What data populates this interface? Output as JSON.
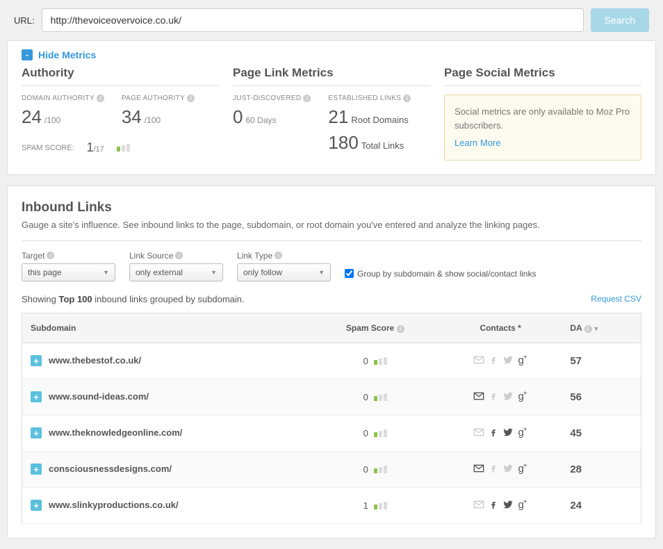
{
  "url_bar": {
    "label": "URL:",
    "value": "http://thevoiceovervoice.co.uk/",
    "search_btn": "Search"
  },
  "hide_metrics": {
    "toggle": "-",
    "label": "Hide Metrics"
  },
  "authority": {
    "title": "Authority",
    "domain_auth_label": "DOMAIN AUTHORITY",
    "domain_auth_value": "24",
    "domain_auth_max": "/100",
    "page_auth_label": "PAGE AUTHORITY",
    "page_auth_value": "34",
    "page_auth_max": "/100",
    "spam_label": "SPAM SCORE:",
    "spam_value": "1",
    "spam_max": "/17"
  },
  "page_link": {
    "title": "Page Link Metrics",
    "just_label": "JUST-DISCOVERED",
    "just_value": "0",
    "just_suffix": "60 Days",
    "est_label": "ESTABLISHED LINKS",
    "root_value": "21",
    "root_suffix": "Root Domains",
    "total_value": "180",
    "total_suffix": "Total Links"
  },
  "social": {
    "title": "Page Social Metrics",
    "msg": "Social metrics are only available to Moz Pro subscribers.",
    "link": "Learn More"
  },
  "inbound": {
    "title": "Inbound Links",
    "desc": "Gauge a site's influence. See inbound links to the page, subdomain, or root domain you've entered and analyze the linking pages."
  },
  "filters": {
    "target_label": "Target",
    "target_value": "this page",
    "source_label": "Link Source",
    "source_value": "only external",
    "type_label": "Link Type",
    "type_value": "only follow",
    "group_label": "Group by subdomain & show social/contact links"
  },
  "showing": {
    "prefix": "Showing ",
    "bold": "Top 100",
    "suffix": " inbound links grouped by subdomain.",
    "csv": "Request CSV"
  },
  "table": {
    "headers": {
      "subdomain": "Subdomain",
      "spam": "Spam Score",
      "contacts": "Contacts *",
      "da": "DA"
    },
    "rows": [
      {
        "subdomain": "www.thebestof.co.uk/",
        "spam": "0",
        "mail": false,
        "fb": false,
        "tw": false,
        "gp": true,
        "da": "57"
      },
      {
        "subdomain": "www.sound-ideas.com/",
        "spam": "0",
        "mail": true,
        "fb": false,
        "tw": false,
        "gp": true,
        "da": "56"
      },
      {
        "subdomain": "www.theknowledgeonline.com/",
        "spam": "0",
        "mail": false,
        "fb": true,
        "tw": true,
        "gp": true,
        "da": "45"
      },
      {
        "subdomain": "consciousnessdesigns.com/",
        "spam": "0",
        "mail": true,
        "fb": false,
        "tw": false,
        "gp": true,
        "da": "28"
      },
      {
        "subdomain": "www.slinkyproductions.co.uk/",
        "spam": "1",
        "mail": false,
        "fb": true,
        "tw": true,
        "gp": true,
        "da": "24"
      }
    ]
  },
  "colors": {
    "link": "#3498db",
    "search_btn": "#a8d8e8",
    "spam_green": "#8bc34a",
    "expand": "#5bc0de"
  }
}
